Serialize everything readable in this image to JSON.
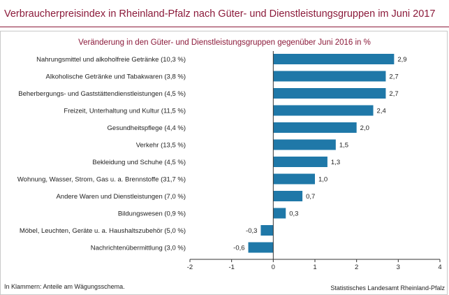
{
  "header": {
    "title": "Verbraucherpreisindex in Rheinland-Pfalz nach Güter- und Dienstleistungsgruppen im Juni 2017"
  },
  "chart_data": {
    "type": "bar",
    "orientation": "horizontal",
    "subtitle": "Veränderung in den Güter- und Dienstleistungsgruppen gegenüber Juni 2016 in %",
    "categories": [
      "Nahrungsmittel und alkoholfreie Getränke (10,3 %)",
      "Alkoholische Getränke und Tabakwaren (3,8 %)",
      "Beherbergungs- und Gaststättendienstleistungen (4,5 %)",
      "Freizeit, Unterhaltung und Kultur (11,5 %)",
      "Gesundheitspflege (4,4 %)",
      "Verkehr (13,5 %)",
      "Bekleidung und Schuhe (4,5 %)",
      "Wohnung, Wasser, Strom, Gas u. a. Brennstoffe (31,7 %)",
      "Andere Waren und Dienstleistungen (7,0 %)",
      "Bildungswesen (0,9 %)",
      "Möbel, Leuchten, Geräte u. a. Haushaltszubehör  (5,0 %)",
      "Nachrichtenübermittlung (3,0 %)"
    ],
    "values": [
      2.9,
      2.7,
      2.7,
      2.4,
      2.0,
      1.5,
      1.3,
      1.0,
      0.7,
      0.3,
      -0.3,
      -0.6
    ],
    "value_labels": [
      "2,9",
      "2,7",
      "2,7",
      "2,4",
      "2,0",
      "1,5",
      "1,3",
      "1,0",
      "0,7",
      "0,3",
      "-0,3",
      "-0,6"
    ],
    "xlim": [
      -2,
      4
    ],
    "xticks": [
      -2,
      -1,
      0,
      1,
      2,
      3,
      4
    ],
    "xtick_labels": [
      "-2",
      "-1",
      "0",
      "1",
      "2",
      "3",
      "4"
    ],
    "grid": false,
    "bar_color": "#1f78a8"
  },
  "footer": {
    "note": "In Klammern: Anteile am Wägungsschema.",
    "source": "Statistisches Landesamt Rheinland-Pfalz"
  }
}
